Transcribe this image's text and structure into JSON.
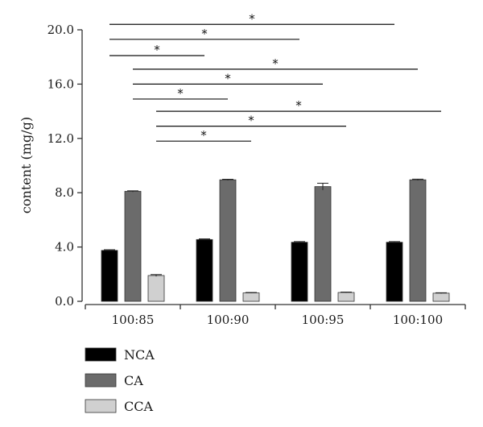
{
  "chart_data": {
    "type": "bar",
    "categories": [
      "100:85",
      "100:90",
      "100:95",
      "100:100"
    ],
    "series": [
      {
        "name": "NCA",
        "color": "#000000",
        "values": [
          3.75,
          4.55,
          4.35,
          4.35
        ],
        "errors": [
          0.05,
          0.05,
          0.05,
          0.05
        ]
      },
      {
        "name": "CA",
        "color": "#6b6b6b",
        "values": [
          8.1,
          8.95,
          8.45,
          8.95
        ],
        "errors": [
          0.04,
          0.04,
          0.25,
          0.05
        ]
      },
      {
        "name": "CCA",
        "color": "#d0d0d0",
        "values": [
          1.9,
          0.62,
          0.65,
          0.6
        ],
        "errors": [
          0.07,
          0.03,
          0.03,
          0.03
        ]
      }
    ],
    "ylabel": "content (mg/g)",
    "xlabel": "",
    "ylim": [
      0,
      20
    ],
    "yticks": [
      "0.0",
      "4.0",
      "8.0",
      "12.0",
      "16.0",
      "20.0"
    ],
    "legend_position": "bottom-left",
    "grid": false,
    "significance": [
      {
        "series": "CCA",
        "from": 0,
        "to": 1,
        "y": 11.8,
        "label": "*"
      },
      {
        "series": "CCA",
        "from": 0,
        "to": 2,
        "y": 12.9,
        "label": "*"
      },
      {
        "series": "CCA",
        "from": 0,
        "to": 3,
        "y": 14.0,
        "label": "*"
      },
      {
        "series": "CA",
        "from": 0,
        "to": 1,
        "y": 14.9,
        "label": "*"
      },
      {
        "series": "CA",
        "from": 0,
        "to": 2,
        "y": 16.0,
        "label": "*"
      },
      {
        "series": "CA",
        "from": 0,
        "to": 3,
        "y": 17.1,
        "label": "*"
      },
      {
        "series": "NCA",
        "from": 0,
        "to": 1,
        "y": 18.1,
        "label": "*"
      },
      {
        "series": "NCA",
        "from": 0,
        "to": 2,
        "y": 19.3,
        "label": "*"
      },
      {
        "series": "NCA",
        "from": 0,
        "to": 3,
        "y": 20.4,
        "label": "*"
      }
    ]
  }
}
